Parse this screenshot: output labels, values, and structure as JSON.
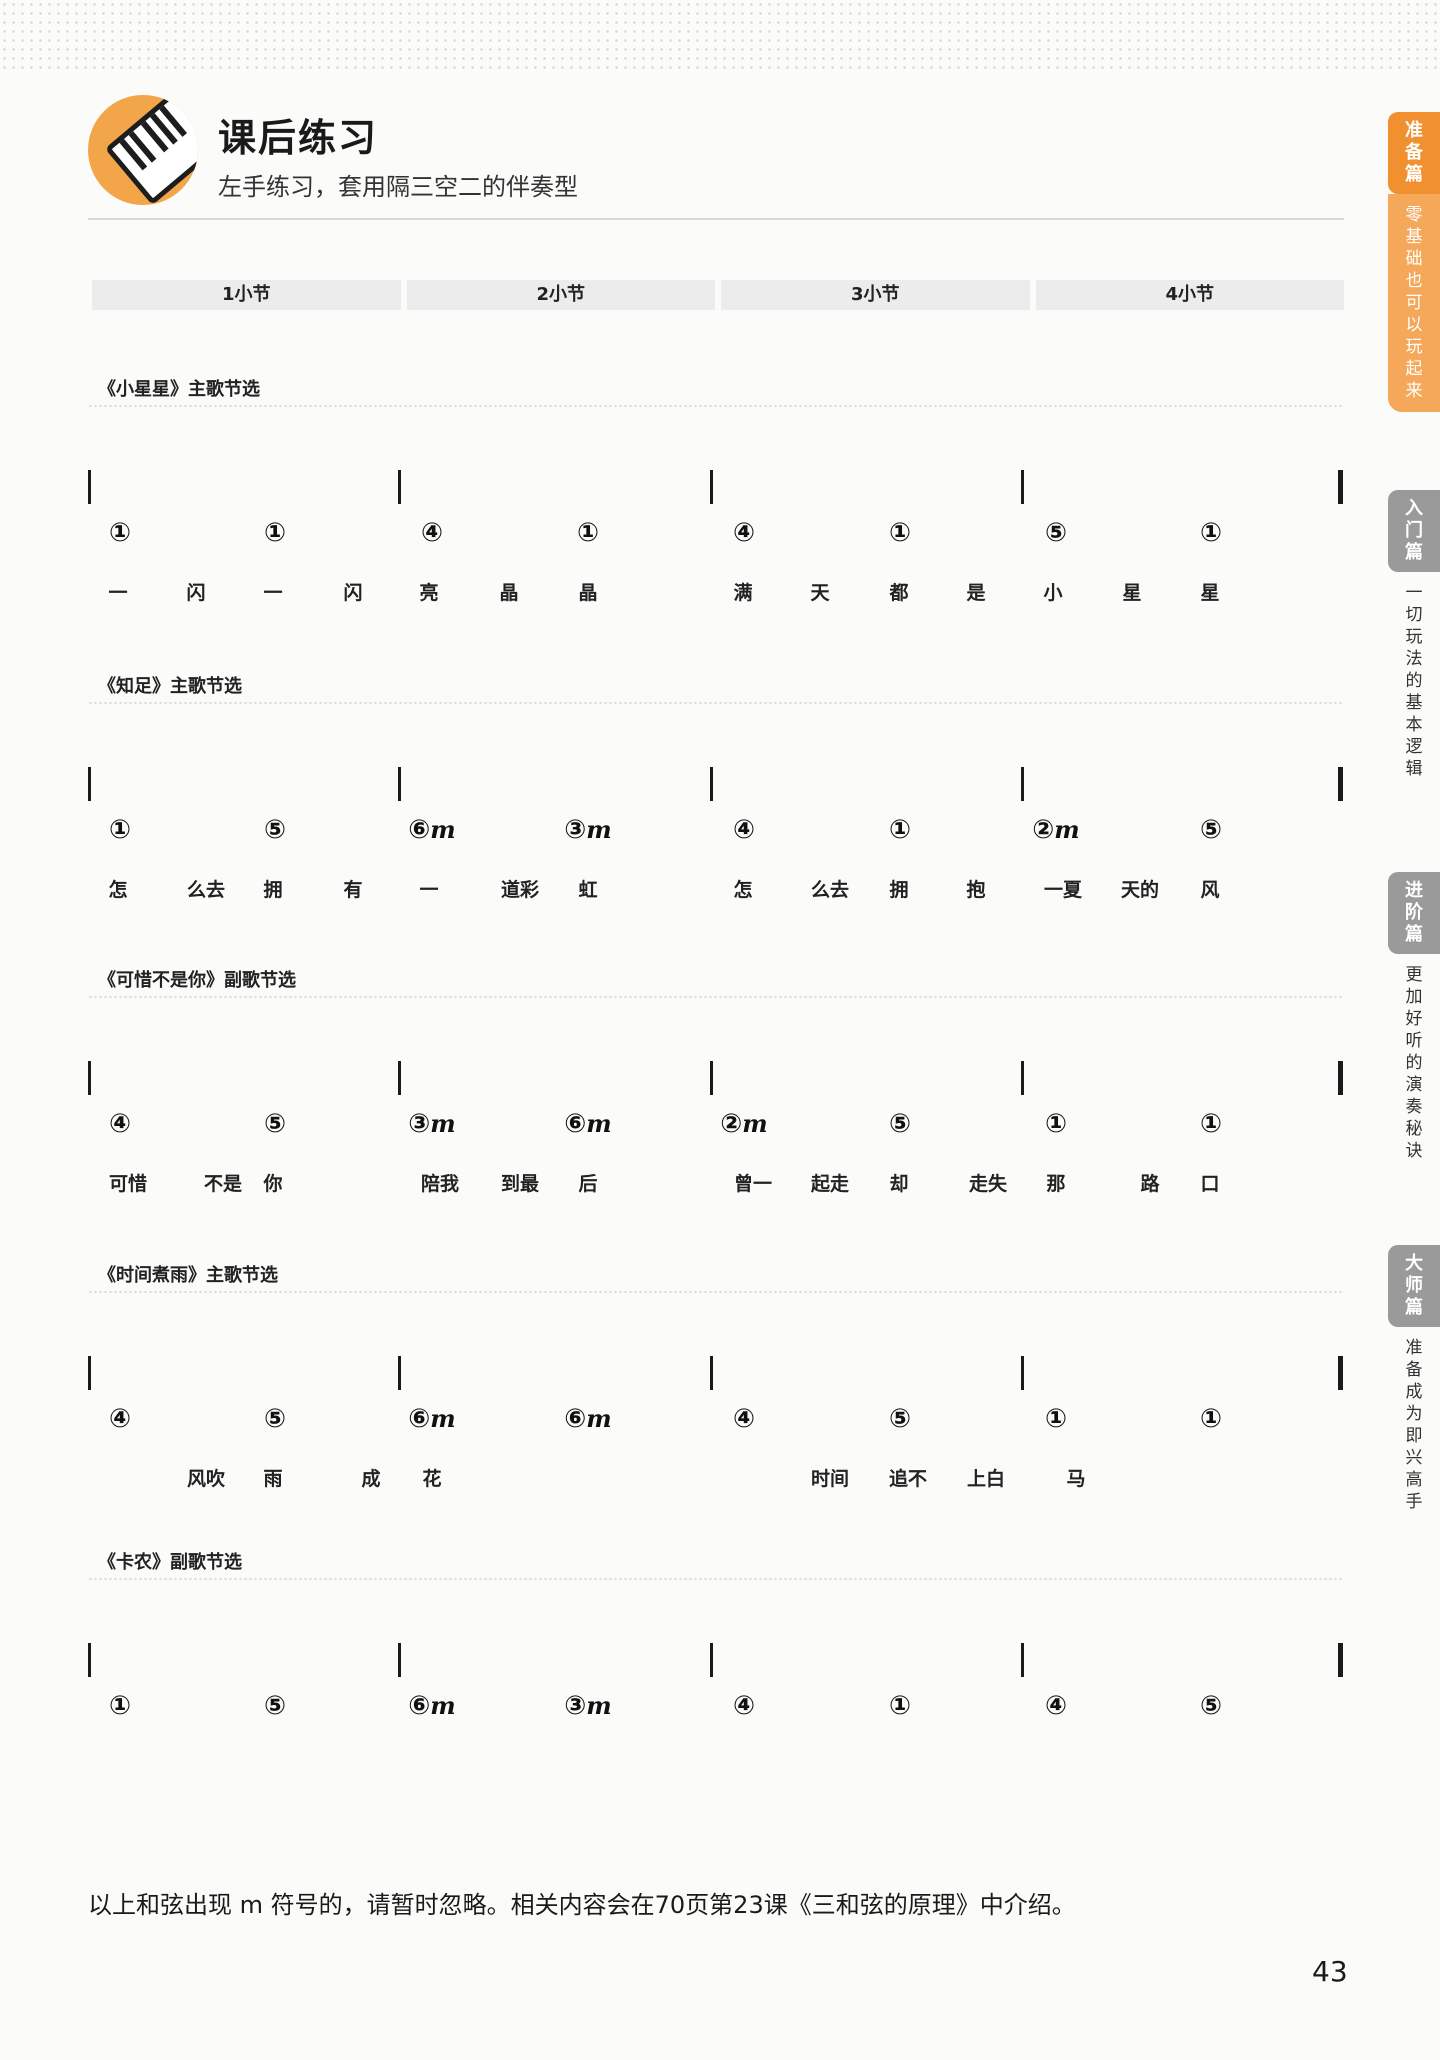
{
  "header": {
    "title": "课后练习",
    "subtitle": "左手练习，套用隔三空二的伴奏型"
  },
  "measures": [
    "1小节",
    "2小节",
    "3小节",
    "4小节"
  ],
  "sections": [
    {
      "title": "《小星星》主歌节选",
      "chords": [
        "①",
        "①",
        "④",
        "①",
        "④",
        "①",
        "⑤",
        "①"
      ],
      "lyrics": [
        "一",
        "闪",
        "一",
        "闪",
        "亮",
        "晶",
        "晶",
        "满",
        "天",
        "都",
        "是",
        "小",
        "星",
        "星"
      ]
    },
    {
      "title": "《知足》主歌节选",
      "chords": [
        "①",
        "⑤",
        "⑥m",
        "③m",
        "④",
        "①",
        "②m",
        "⑤"
      ],
      "lyrics": [
        "怎",
        "么去",
        "拥",
        "有",
        "一",
        "道彩",
        "虹",
        "怎",
        "么去",
        "拥",
        "抱",
        "一夏",
        "天的",
        "风"
      ]
    },
    {
      "title": "《可惜不是你》副歌节选",
      "chords": [
        "④",
        "⑤",
        "③m",
        "⑥m",
        "②m",
        "⑤",
        "①",
        "①"
      ],
      "lyrics": [
        "可惜",
        "不是",
        "你",
        "陪我",
        "到最",
        "后",
        "曾一",
        "起走",
        "却",
        "走失",
        "那",
        "路",
        "口"
      ]
    },
    {
      "title": "《时间煮雨》主歌节选",
      "chords": [
        "④",
        "⑤",
        "⑥m",
        "⑥m",
        "④",
        "⑤",
        "①",
        "①"
      ],
      "lyrics": [
        "风吹",
        "雨",
        "成",
        "花",
        "时间",
        "追不",
        "上白",
        "马"
      ]
    },
    {
      "title": "《卡农》副歌节选",
      "chords": [
        "①",
        "⑤",
        "⑥m",
        "③m",
        "④",
        "①",
        "④",
        "⑤"
      ],
      "lyrics": []
    }
  ],
  "footnote": "以上和弦出现 m 符号的，请暂时忽略。相关内容会在70页第23课《三和弦的原理》中介绍。",
  "page_number": "43",
  "side_tabs": [
    {
      "tab": "准备篇",
      "desc": "零基础也可以玩起来",
      "active": true
    },
    {
      "tab": "入门篇",
      "desc": "一切玩法的基本逻辑",
      "active": false
    },
    {
      "tab": "进阶篇",
      "desc": "更加好听的演奏秘诀",
      "active": false
    },
    {
      "tab": "大师篇",
      "desc": "准备成为即兴高手",
      "active": false
    }
  ],
  "colors": {
    "accent": "#f0902e",
    "tab_inactive": "#9a9a9a"
  }
}
